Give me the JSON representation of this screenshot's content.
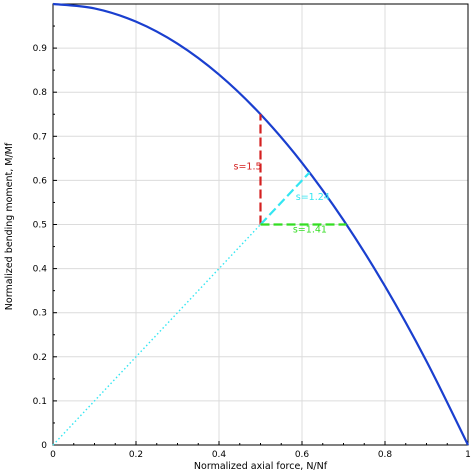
{
  "chart_data": {
    "type": "line",
    "title": "",
    "xlabel": "Normalized axial force, N/Nf",
    "ylabel": "Normalized bending moment, M/Mf",
    "xlim": [
      0,
      1
    ],
    "ylim": [
      0,
      1
    ],
    "x_ticks": [
      "0",
      "0.2",
      "0.4",
      "0.6",
      "0.8",
      "1"
    ],
    "y_ticks": [
      "0",
      "0.1",
      "0.2",
      "0.3",
      "0.4",
      "0.5",
      "0.6",
      "0.7",
      "0.8",
      "0.9"
    ],
    "grid": true,
    "series": [
      {
        "kind": "curve",
        "color": "#1a3fcf",
        "style": "solid",
        "x": [
          0,
          0.1,
          0.2,
          0.3,
          0.4,
          0.5,
          0.6,
          0.7,
          0.8,
          0.9,
          1.0
        ],
        "y": [
          1.0,
          0.99,
          0.96,
          0.91,
          0.84,
          0.75,
          0.64,
          0.51,
          0.36,
          0.19,
          0.0
        ]
      },
      {
        "kind": "load-path",
        "color": "#33e6f2",
        "style": "dotted",
        "x": [
          0,
          0.5
        ],
        "y": [
          0,
          0.5
        ]
      },
      {
        "kind": "vertical-margin",
        "color": "#d42020",
        "style": "dashed",
        "x": [
          0.5,
          0.5
        ],
        "y": [
          0.5,
          0.75
        ]
      },
      {
        "kind": "radial-margin",
        "color": "#33e6f2",
        "style": "dashed",
        "x": [
          0.5,
          0.618
        ],
        "y": [
          0.5,
          0.618
        ]
      },
      {
        "kind": "horizontal-margin",
        "color": "#33dd22",
        "style": "dashed",
        "x": [
          0.5,
          0.707
        ],
        "y": [
          0.5,
          0.5
        ]
      }
    ],
    "annotations": [
      {
        "text": "s=1.5",
        "color": "#d42020",
        "x": 0.435,
        "y": 0.625
      },
      {
        "text": "s=1.24",
        "color": "#33e6f2",
        "x": 0.585,
        "y": 0.555
      },
      {
        "text": "s=1.41",
        "color": "#33dd22",
        "x": 0.578,
        "y": 0.482
      }
    ]
  }
}
